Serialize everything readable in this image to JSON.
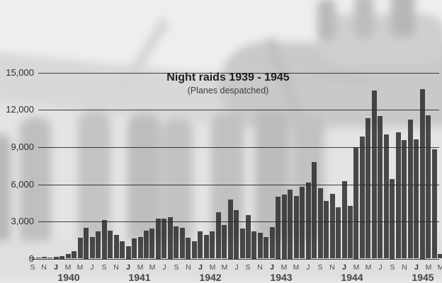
{
  "chart_data": {
    "type": "bar",
    "title": "Night raids 1939 - 1945",
    "subtitle": "(Planes despatched)",
    "x": [
      "Sep 1939",
      "Oct 1939",
      "Nov 1939",
      "Dec 1939",
      "Jan 1940",
      "Feb 1940",
      "Mar 1940",
      "Apr 1940",
      "May 1940",
      "Jun 1940",
      "Jul 1940",
      "Aug 1940",
      "Sep 1940",
      "Oct 1940",
      "Nov 1940",
      "Dec 1940",
      "Jan 1941",
      "Feb 1941",
      "Mar 1941",
      "Apr 1941",
      "May 1941",
      "Jun 1941",
      "Jul 1941",
      "Aug 1941",
      "Sep 1941",
      "Oct 1941",
      "Nov 1941",
      "Dec 1941",
      "Jan 1942",
      "Feb 1942",
      "Mar 1942",
      "Apr 1942",
      "May 1942",
      "Jun 1942",
      "Jul 1942",
      "Aug 1942",
      "Sep 1942",
      "Oct 1942",
      "Nov 1942",
      "Dec 1942",
      "Jan 1943",
      "Feb 1943",
      "Mar 1943",
      "Apr 1943",
      "May 1943",
      "Jun 1943",
      "Jul 1943",
      "Aug 1943",
      "Sep 1943",
      "Oct 1943",
      "Nov 1943",
      "Dec 1943",
      "Jan 1944",
      "Feb 1944",
      "Mar 1944",
      "Apr 1944",
      "May 1944",
      "Jun 1944",
      "Jul 1944",
      "Aug 1944",
      "Sep 1944",
      "Oct 1944",
      "Nov 1944",
      "Dec 1944",
      "Jan 1945",
      "Feb 1945",
      "Mar 1945",
      "Apr 1945",
      "May 1945"
    ],
    "values": [
      65,
      110,
      120,
      90,
      170,
      230,
      390,
      590,
      1668,
      2484,
      1722,
      2188,
      3141,
      2242,
      1894,
      1385,
      1030,
      1617,
      1728,
      2249,
      2416,
      3228,
      3243,
      3344,
      2621,
      2501,
      1713,
      1411,
      2216,
      1896,
      2224,
      3752,
      2702,
      4801,
      3914,
      2454,
      3489,
      2198,
      2067,
      1758,
      2556,
      5030,
      5174,
      5571,
      5047,
      5816,
      6170,
      7807,
      5692,
      4638,
      5208,
      4123,
      6278,
      4263,
      9031,
      9873,
      11353,
      13592,
      11500,
      10013,
      6428,
      10193,
      9589,
      11239,
      9603,
      13715,
      11585,
      8822,
      349
    ],
    "ylim": [
      0,
      15000
    ],
    "y_ticks": [
      0,
      3000,
      6000,
      9000,
      12000,
      15000
    ],
    "y_tick_labels": [
      "0",
      "3,000",
      "6,000",
      "9,000",
      "12,000",
      "15,000"
    ],
    "x_tick_rule": "every second month lettered: S N J M M J, January letter bold",
    "year_labels": [
      "1940",
      "1941",
      "1942",
      "1943",
      "1944",
      "1945"
    ],
    "grid": true,
    "legend": "none",
    "bar_color": "#2a2a2a",
    "background_description": "faded black-and-white photograph of seven RAF airmen standing before a bomber aircraft"
  }
}
